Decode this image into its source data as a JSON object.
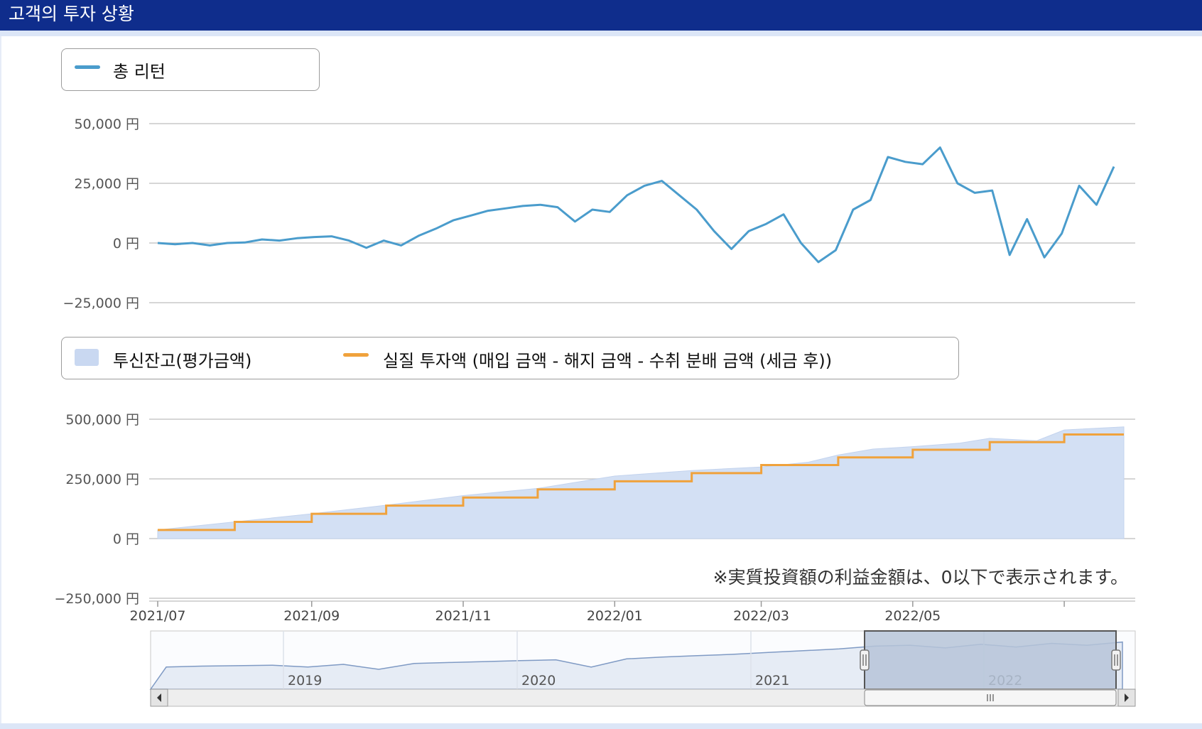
{
  "header": {
    "title": "고객의 투자 상황"
  },
  "note": "※実質投資額の利益金額は、0以下で表示されます。",
  "colors": {
    "return_line": "#4a9ccc",
    "balance_area": "#d3e0f4",
    "investment_line": "#f0a23c",
    "navigator_fill": "#e6ecf5",
    "navigator_selection": "#b6c4d8",
    "header_bg": "#0f2d8c"
  },
  "chart_data": [
    {
      "type": "line",
      "legend": [
        "총 리턴"
      ],
      "y_ticks": [
        "50,000 円",
        "25,000 円",
        "0 円",
        "−25,000 円"
      ],
      "ylim": [
        -25000,
        50000
      ],
      "grid": true,
      "legend_position": "top-left",
      "series": [
        {
          "name": "총 리턴",
          "x": [
            "2021-07-01",
            "2021-07-08",
            "2021-07-15",
            "2021-07-22",
            "2021-07-29",
            "2021-08-05",
            "2021-08-12",
            "2021-08-19",
            "2021-08-26",
            "2021-09-02",
            "2021-09-09",
            "2021-09-16",
            "2021-09-23",
            "2021-09-30",
            "2021-10-07",
            "2021-10-14",
            "2021-10-21",
            "2021-10-28",
            "2021-11-04",
            "2021-11-11",
            "2021-11-18",
            "2021-11-25",
            "2021-12-02",
            "2021-12-09",
            "2021-12-16",
            "2021-12-23",
            "2021-12-30",
            "2022-01-06",
            "2022-01-13",
            "2022-01-20",
            "2022-01-27",
            "2022-02-03",
            "2022-02-10",
            "2022-02-17",
            "2022-02-24",
            "2022-03-03",
            "2022-03-10",
            "2022-03-17",
            "2022-03-24",
            "2022-03-31",
            "2022-04-07",
            "2022-04-14",
            "2022-04-21",
            "2022-04-28",
            "2022-05-05",
            "2022-05-12",
            "2022-05-19",
            "2022-05-26",
            "2022-06-02",
            "2022-06-09",
            "2022-06-16",
            "2022-06-23",
            "2022-06-30",
            "2022-07-07",
            "2022-07-14",
            "2022-07-21"
          ],
          "values": [
            0,
            -500,
            0,
            -1000,
            0,
            200,
            1500,
            1000,
            2000,
            2500,
            2800,
            1000,
            -2000,
            1000,
            -1000,
            3000,
            6000,
            9500,
            11500,
            13500,
            14500,
            15500,
            16000,
            15000,
            9000,
            14000,
            13000,
            20000,
            24000,
            26000,
            20000,
            14000,
            5000,
            -2500,
            5000,
            8000,
            12000,
            0,
            -8000,
            -3000,
            14000,
            18000,
            36000,
            34000,
            33000,
            40000,
            25000,
            21000,
            22000,
            -5000,
            10000,
            -6000,
            4000,
            24000,
            16000,
            32000
          ]
        }
      ]
    },
    {
      "type": "area",
      "legend": [
        "투신잔고(평가금액)",
        "실질 투자액 (매입 금액 - 해지 금액 - 수취 분배 금액 (세금 후))"
      ],
      "y_ticks": [
        "500,000 円",
        "250,000 円",
        "0 円",
        "−250,000 円"
      ],
      "ylim": [
        -250000,
        500000
      ],
      "x_ticks": [
        "2021/07",
        "2021/09",
        "2021/11",
        "2022/01",
        "2022/03",
        "2022/05"
      ],
      "grid": true,
      "legend_position": "top-left",
      "series": [
        {
          "name": "투신잔고(평가금액)",
          "x": [
            "2021-07-01",
            "2021-08-01",
            "2021-09-01",
            "2021-10-01",
            "2021-11-01",
            "2021-12-01",
            "2022-01-01",
            "2022-02-01",
            "2022-03-01",
            "2022-03-20",
            "2022-04-01",
            "2022-04-15",
            "2022-05-01",
            "2022-05-20",
            "2022-06-01",
            "2022-06-20",
            "2022-07-01",
            "2022-07-25"
          ],
          "values": [
            36000,
            70000,
            104000,
            140000,
            180000,
            210000,
            262000,
            285000,
            300000,
            320000,
            350000,
            375000,
            385000,
            400000,
            420000,
            410000,
            455000,
            468000
          ]
        },
        {
          "name": "실질 투자액 (매입 금액 - 해지 금액 - 수취 분배 금액 (세금 후))",
          "x": [
            "2021-07-01",
            "2021-08-01",
            "2021-09-01",
            "2021-10-01",
            "2021-11-01",
            "2021-12-01",
            "2022-01-01",
            "2022-02-01",
            "2022-03-01",
            "2022-04-01",
            "2022-05-01",
            "2022-06-01",
            "2022-07-01",
            "2022-07-25"
          ],
          "values": [
            36000,
            70000,
            104000,
            138000,
            172000,
            206000,
            240000,
            274000,
            308000,
            340000,
            372000,
            404000,
            436000,
            436000
          ]
        }
      ]
    },
    {
      "type": "area",
      "x_ticks": [
        "2019",
        "2020",
        "2021",
        "2022"
      ],
      "selected_range": [
        "2021-07",
        "2022-07"
      ],
      "values": [
        0.3,
        0.32,
        0.33,
        0.34,
        0.3,
        0.36,
        0.25,
        0.38,
        0.4,
        0.42,
        0.44,
        0.46,
        0.3,
        0.48,
        0.52,
        0.55,
        0.58,
        0.62,
        0.66,
        0.7,
        0.76,
        0.78,
        0.72,
        0.8,
        0.74,
        0.82,
        0.78,
        0.85
      ]
    }
  ]
}
